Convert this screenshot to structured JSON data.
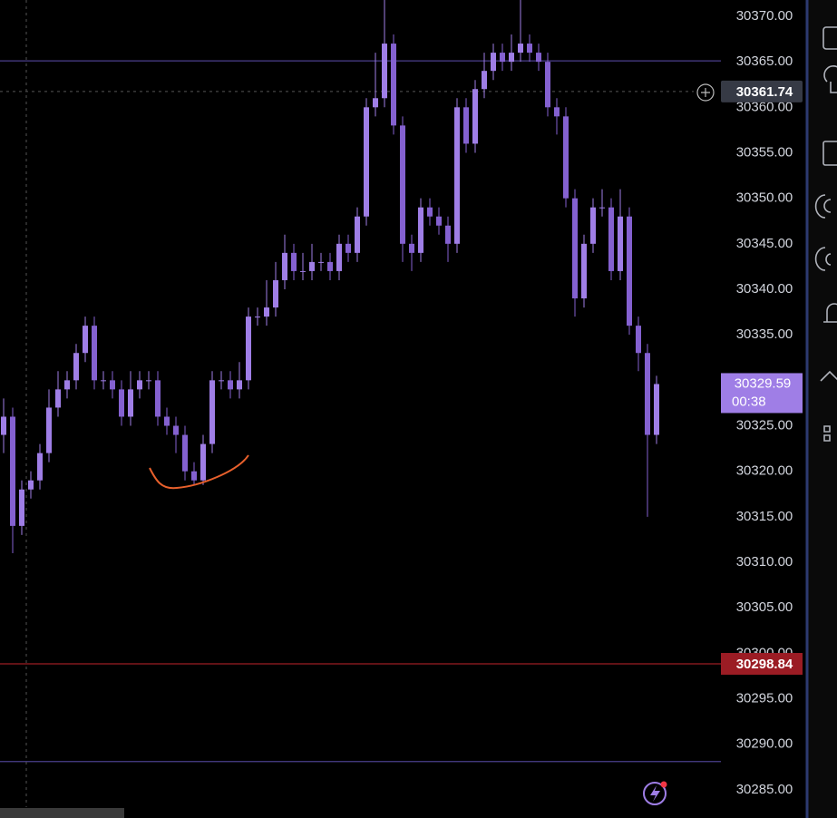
{
  "chart_data": {
    "type": "candlestick",
    "up_color": "#9f7ee6",
    "down_color": "#8461d0",
    "ylim": [
      30281.9,
      30371.79
    ],
    "yticks": [
      {
        "value": 30285,
        "label": "30285.00"
      },
      {
        "value": 30290,
        "label": "30290.00"
      },
      {
        "value": 30295,
        "label": "30295.00"
      },
      {
        "value": 30300,
        "label": "30300.00"
      },
      {
        "value": 30305,
        "label": "30305.00"
      },
      {
        "value": 30310,
        "label": "30310.00"
      },
      {
        "value": 30315,
        "label": "30315.00"
      },
      {
        "value": 30320,
        "label": "30320.00"
      },
      {
        "value": 30325,
        "label": "30325.00"
      },
      {
        "value": 30330,
        "label": "30330.00"
      },
      {
        "value": 30335,
        "label": "30335.00"
      },
      {
        "value": 30340,
        "label": "30340.00"
      },
      {
        "value": 30345,
        "label": "30345.00"
      },
      {
        "value": 30350,
        "label": "30350.00"
      },
      {
        "value": 30355,
        "label": "30355.00"
      },
      {
        "value": 30360,
        "label": "30360.00"
      },
      {
        "value": 30365,
        "label": "30365.00"
      },
      {
        "value": 30370,
        "label": "30370.00"
      }
    ],
    "grid": false,
    "open": [
      30324,
      30326,
      30314,
      30318,
      30319,
      30322,
      30327,
      30329,
      30330,
      30333,
      30336,
      30330,
      30330,
      30329,
      30326,
      30329,
      30330,
      30330,
      30326,
      30325,
      30324,
      30320,
      30319,
      30323,
      30330,
      30330,
      30329,
      30330,
      30337,
      30337,
      30338,
      30341,
      30344,
      30342,
      30342,
      30343,
      30343,
      30342,
      30345,
      30344,
      30348,
      30360,
      30361,
      30367,
      30358,
      30345,
      30344,
      30349,
      30348,
      30347,
      30345,
      30360,
      30356,
      30362,
      30364,
      30366,
      30365,
      30366,
      30367,
      30366,
      30365,
      30360,
      30359,
      30350,
      30339,
      30345,
      30349,
      30349,
      30342,
      30348,
      30336,
      30333,
      30324
    ],
    "high": [
      30328,
      30327,
      30319,
      30320,
      30323,
      30329,
      30331,
      30331,
      30334,
      30337,
      30337,
      30331,
      30331,
      30330,
      30331,
      30331,
      30331,
      30331,
      30327,
      30326,
      30325,
      30321,
      30324,
      30331,
      30331,
      30331,
      30332,
      30338,
      30338,
      30341,
      30343,
      30346,
      30345,
      30344,
      30345,
      30344,
      30344,
      30346,
      30346,
      30349,
      30361,
      30366,
      30372,
      30368,
      30359,
      30346,
      30350,
      30350,
      30349,
      30348,
      30361,
      30361,
      30363,
      30366,
      30367,
      30367,
      30368,
      30372,
      30368,
      30367,
      30366,
      30361,
      30360,
      30351,
      30346,
      30350,
      30351,
      30350,
      30351,
      30349,
      30337,
      30334,
      30330.5
    ],
    "low": [
      30322,
      30311,
      30313,
      30317,
      30318,
      30321,
      30326,
      30328,
      30329,
      30332,
      30329,
      30329,
      30328,
      30325,
      30325,
      30328,
      30329,
      30325,
      30324,
      30322,
      30319,
      30318.5,
      30318.5,
      30322,
      30329,
      30328,
      30328,
      30329,
      30336,
      30336,
      30337,
      30340,
      30341,
      30341,
      30341,
      30342,
      30341,
      30341,
      30343,
      30343,
      30347,
      30359,
      30360,
      30357,
      30343,
      30342,
      30343,
      30347,
      30346,
      30343,
      30344,
      30355,
      30355,
      30361,
      30363,
      30364,
      30364,
      30365,
      30365,
      30364,
      30359,
      30357,
      30349,
      30337,
      30338,
      30344,
      30348,
      30341,
      30341,
      30335,
      30331,
      30315,
      30323
    ],
    "close": [
      30326,
      30314,
      30318,
      30319,
      30322,
      30327,
      30329,
      30330,
      30333,
      30336,
      30330,
      30330,
      30329,
      30326,
      30329,
      30330,
      30330,
      30326,
      30325,
      30324,
      30320,
      30319,
      30323,
      30330,
      30330,
      30329,
      30330,
      30337,
      30337,
      30338,
      30341,
      30344,
      30342,
      30342,
      30343,
      30343,
      30342,
      30345,
      30344,
      30348,
      30360,
      30361,
      30367,
      30358,
      30345,
      30344,
      30349,
      30348,
      30347,
      30345,
      30360,
      30356,
      30362,
      30364,
      30366,
      30365,
      30366,
      30367,
      30366,
      30365,
      30360,
      30359,
      30350,
      30339,
      30345,
      30349,
      30349,
      30342,
      30348,
      30336,
      30333,
      30324,
      30329.59
    ],
    "horizontal_lines": [
      {
        "value": 30365.1,
        "color": "#4a3f8c"
      },
      {
        "value": 30288.1,
        "color": "#4a3f8c"
      }
    ],
    "crosshair_price": 30361.74,
    "last_price": 30329.59,
    "countdown": "00:38",
    "alert_price": 30298.84,
    "alert_color": "#9b1c24"
  }
}
